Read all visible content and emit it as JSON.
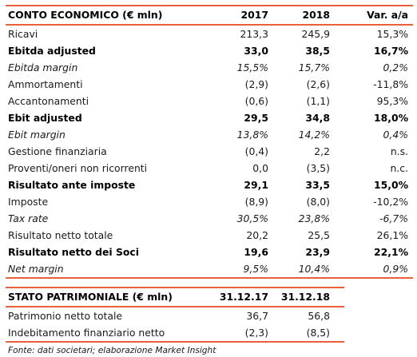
{
  "conto_economico": {
    "header": {
      "label": "CONTO ECONOMICO (€ mln)",
      "y1": "2017",
      "y2": "2018",
      "var": "Var. a/a"
    },
    "rows": [
      {
        "label": "Ricavi",
        "y1": "213,3",
        "y2": "245,9",
        "var": "15,3%",
        "style": "normal"
      },
      {
        "label": "Ebitda adjusted",
        "y1": "33,0",
        "y2": "38,5",
        "var": "16,7%",
        "style": "bold"
      },
      {
        "label": "Ebitda margin",
        "y1": "15,5%",
        "y2": "15,7%",
        "var": "0,2%",
        "style": "italic"
      },
      {
        "label": "Ammortamenti",
        "y1": "(2,9)",
        "y2": "(2,6)",
        "var": "-11,8%",
        "style": "normal"
      },
      {
        "label": "Accantonamenti",
        "y1": "(0,6)",
        "y2": "(1,1)",
        "var": "95,3%",
        "style": "normal"
      },
      {
        "label": "Ebit adjusted",
        "y1": "29,5",
        "y2": "34,8",
        "var": "18,0%",
        "style": "bold"
      },
      {
        "label": "Ebit margin",
        "y1": "13,8%",
        "y2": "14,2%",
        "var": "0,4%",
        "style": "italic"
      },
      {
        "label": "Gestione finanziaria",
        "y1": "(0,4)",
        "y2": "2,2",
        "var": "n.s.",
        "style": "normal"
      },
      {
        "label": "Proventi/oneri non ricorrenti",
        "y1": "0,0",
        "y2": "(3,5)",
        "var": "n.c.",
        "style": "normal"
      },
      {
        "label": "Risultato ante imposte",
        "y1": "29,1",
        "y2": "33,5",
        "var": "15,0%",
        "style": "bold"
      },
      {
        "label": "Imposte",
        "y1": "(8,9)",
        "y2": "(8,0)",
        "var": "-10,2%",
        "style": "normal"
      },
      {
        "label": "Tax rate",
        "y1": "30,5%",
        "y2": "23,8%",
        "var": "-6,7%",
        "style": "italic"
      },
      {
        "label": "Risultato netto totale",
        "y1": "20,2",
        "y2": "25,5",
        "var": "26,1%",
        "style": "normal"
      },
      {
        "label": "Risultato netto dei Soci",
        "y1": "19,6",
        "y2": "23,9",
        "var": "22,1%",
        "style": "bold"
      },
      {
        "label": "Net margin",
        "y1": "9,5%",
        "y2": "10,4%",
        "var": "0,9%",
        "style": "italic"
      }
    ]
  },
  "stato_patrimoniale": {
    "header": {
      "label": "STATO PATRIMONIALE (€ mln)",
      "y1": "31.12.17",
      "y2": "31.12.18"
    },
    "rows": [
      {
        "label": "Patrimonio netto totale",
        "y1": "36,7",
        "y2": "56,8"
      },
      {
        "label": "Indebitamento finanziario netto",
        "y1": "(2,3)",
        "y2": "(8,5)"
      }
    ]
  },
  "footnote": "Fonte: dati societari; elaborazione Market Insight",
  "colors": {
    "rule": "#e8603c",
    "text": "#1a1a1a"
  }
}
